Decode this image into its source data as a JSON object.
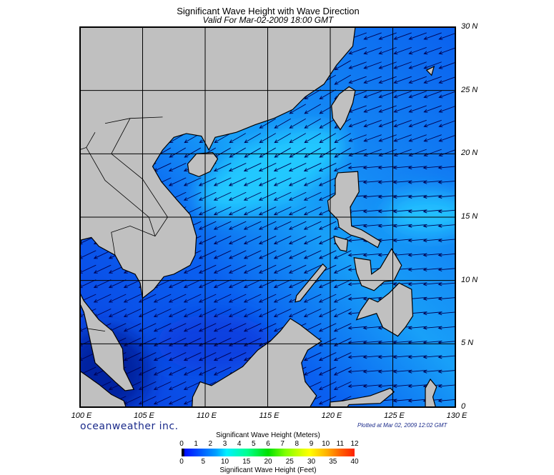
{
  "header": {
    "title": "Significant Wave Height with Wave Direction",
    "subtitle": "Valid For Mar-02-2009 18:00 GMT"
  },
  "map": {
    "lat_labels": [
      "30 N",
      "25 N",
      "20 N",
      "15 N",
      "10 N",
      "5 N",
      "0"
    ],
    "lat_values": [
      30,
      25,
      20,
      15,
      10,
      5,
      0
    ],
    "lon_labels": [
      "100 E",
      "105 E",
      "110 E",
      "115 E",
      "120 E",
      "125 E",
      "130 E"
    ],
    "lon_values": [
      100,
      105,
      110,
      115,
      120,
      125,
      130
    ],
    "extent": {
      "lon": [
        100,
        130
      ],
      "lat": [
        0,
        30
      ]
    },
    "colors": {
      "land": "#c0c0c0",
      "ocean_low": "#0a50e8",
      "ocean_mid": "#1890f5",
      "ocean_high": "#20c8ff",
      "arrow": "#000050"
    }
  },
  "footer": {
    "brand": "oceanweather inc.",
    "plotted": "Plotted at Mar 02, 2009 12:02 GMT"
  },
  "legend": {
    "title_meters": "Significant Wave Height (Meters)",
    "meters_ticks": [
      "0",
      "1",
      "2",
      "3",
      "4",
      "5",
      "6",
      "7",
      "8",
      "9",
      "10",
      "11",
      "12"
    ],
    "feet_ticks": [
      "0",
      "5",
      "10",
      "15",
      "20",
      "25",
      "30",
      "35",
      "40"
    ],
    "title_feet": "Significant Wave Height (Feet)"
  }
}
